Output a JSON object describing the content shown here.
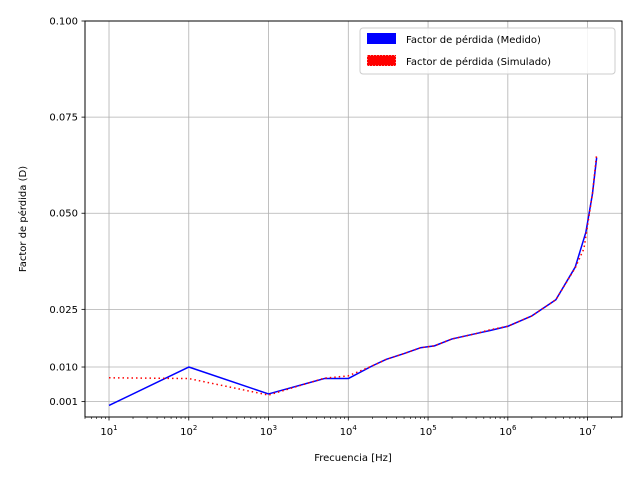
{
  "chart_data": {
    "type": "line",
    "xlabel": "Frecuencia [Hz]",
    "ylabel": "Factor de pérdida (D)",
    "xscale": "log",
    "xlim": [
      5,
      27000000
    ],
    "ylim": [
      -0.003,
      0.1
    ],
    "grid": true,
    "legend_position": "top-right",
    "x_ticks": [
      {
        "value": 10,
        "base": "10",
        "exp": "1"
      },
      {
        "value": 100,
        "base": "10",
        "exp": "2"
      },
      {
        "value": 1000,
        "base": "10",
        "exp": "3"
      },
      {
        "value": 10000,
        "base": "10",
        "exp": "4"
      },
      {
        "value": 100000,
        "base": "10",
        "exp": "5"
      },
      {
        "value": 1000000,
        "base": "10",
        "exp": "6"
      },
      {
        "value": 10000000,
        "base": "10",
        "exp": "7"
      }
    ],
    "y_ticks": [
      {
        "value": 0.001,
        "label": "0.001"
      },
      {
        "value": 0.01,
        "label": "0.010"
      },
      {
        "value": 0.025,
        "label": "0.025"
      },
      {
        "value": 0.05,
        "label": "0.050"
      },
      {
        "value": 0.075,
        "label": "0.075"
      },
      {
        "value": 0.1,
        "label": "0.100"
      }
    ],
    "series": [
      {
        "name": "Factor de pérdida (Medido)",
        "color": "#0000ff",
        "style": "solid",
        "points": [
          [
            10,
            0.0
          ],
          [
            100,
            0.01
          ],
          [
            1000,
            0.003
          ],
          [
            5000,
            0.007
          ],
          [
            10000,
            0.007
          ],
          [
            20000,
            0.0103
          ],
          [
            30000,
            0.012
          ],
          [
            50000,
            0.0135
          ],
          [
            80000,
            0.015
          ],
          [
            120000,
            0.0155
          ],
          [
            200000,
            0.0173
          ],
          [
            400000,
            0.0187
          ],
          [
            600000,
            0.0195
          ],
          [
            1000000,
            0.0206
          ],
          [
            2000000,
            0.0233
          ],
          [
            4000000,
            0.0275
          ],
          [
            7000000,
            0.036
          ],
          [
            9500000,
            0.045
          ],
          [
            11500000,
            0.055
          ],
          [
            13000000,
            0.0645
          ]
        ]
      },
      {
        "name": "Factor de pérdida (Simulado)",
        "color": "#ff0000",
        "style": "dotted",
        "points": [
          [
            10,
            0.0072
          ],
          [
            100,
            0.007
          ],
          [
            1000,
            0.0027
          ],
          [
            5000,
            0.0071
          ],
          [
            10000,
            0.0077
          ],
          [
            20000,
            0.0103
          ],
          [
            30000,
            0.012
          ],
          [
            50000,
            0.0135
          ],
          [
            80000,
            0.015
          ],
          [
            120000,
            0.0155
          ],
          [
            200000,
            0.0173
          ],
          [
            400000,
            0.0187
          ],
          [
            600000,
            0.0197
          ],
          [
            1000000,
            0.0206
          ],
          [
            2000000,
            0.0233
          ],
          [
            4000000,
            0.0275
          ],
          [
            7000000,
            0.0358
          ],
          [
            9000000,
            0.0408
          ],
          [
            11500000,
            0.055
          ],
          [
            13000000,
            0.0655
          ]
        ]
      }
    ]
  }
}
